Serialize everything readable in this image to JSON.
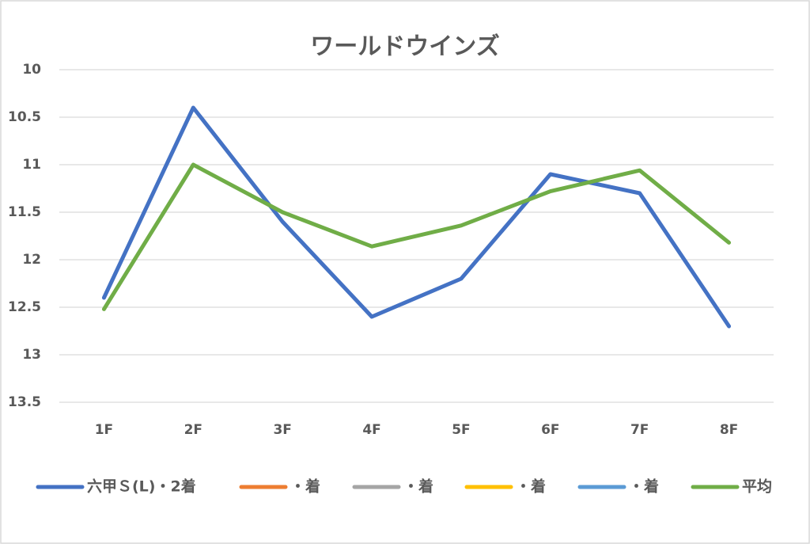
{
  "chart_data": {
    "type": "line",
    "title": "ワールドウインズ",
    "categories": [
      "1F",
      "2F",
      "3F",
      "4F",
      "5F",
      "6F",
      "7F",
      "8F"
    ],
    "series": [
      {
        "name": "六甲Ｓ(L)・2着",
        "color": "#4472c4",
        "values": [
          12.4,
          10.4,
          11.6,
          12.6,
          12.2,
          11.1,
          11.3,
          12.7
        ]
      },
      {
        "name": "・着",
        "color": "#ed7d31",
        "values": [
          null,
          null,
          null,
          null,
          null,
          null,
          null,
          null
        ]
      },
      {
        "name": "・着",
        "color": "#a5a5a5",
        "values": [
          null,
          null,
          null,
          null,
          null,
          null,
          null,
          null
        ]
      },
      {
        "name": "・着",
        "color": "#ffc000",
        "values": [
          null,
          null,
          null,
          null,
          null,
          null,
          null,
          null
        ]
      },
      {
        "name": "・着",
        "color": "#5b9bd5",
        "values": [
          null,
          null,
          null,
          null,
          null,
          null,
          null,
          null
        ]
      },
      {
        "name": "平均",
        "color": "#70ad47",
        "values": [
          12.52,
          11.0,
          11.5,
          11.86,
          11.64,
          11.28,
          11.06,
          11.82
        ]
      }
    ],
    "ylim": [
      10,
      13.5
    ],
    "y_reversed": true,
    "yticks": [
      10,
      10.5,
      11,
      11.5,
      12,
      12.5,
      13,
      13.5
    ],
    "grid": true,
    "legend": "bottom"
  }
}
